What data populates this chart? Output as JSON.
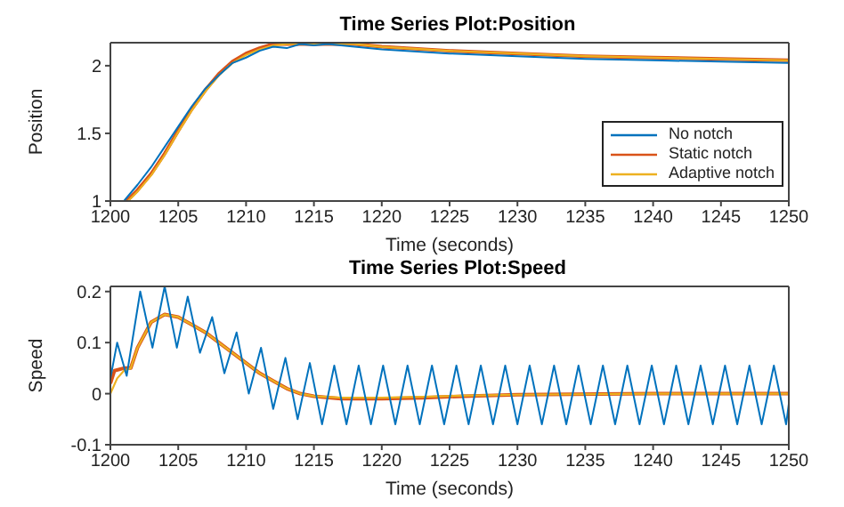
{
  "chart_data": [
    {
      "type": "line",
      "title": "Time Series Plot:Position",
      "xlabel": "Time (seconds)",
      "ylabel": "Position",
      "xlim": [
        1200,
        1250
      ],
      "xticks": [
        1200,
        1205,
        1210,
        1215,
        1220,
        1225,
        1230,
        1235,
        1240,
        1245,
        1250
      ],
      "ylim": [
        1,
        2.17
      ],
      "yticks": [
        1,
        1.5,
        2
      ],
      "grid": false,
      "legend": "bottom right",
      "series": [
        {
          "name": "No notch",
          "color": "#0072bd",
          "x": [
            1201,
            1202,
            1203,
            1204,
            1205,
            1206,
            1207,
            1208,
            1209,
            1210,
            1211,
            1212,
            1213,
            1214,
            1215,
            1216,
            1217,
            1218,
            1220,
            1225,
            1230,
            1235,
            1240,
            1245,
            1250
          ],
          "values": [
            1.0,
            1.12,
            1.25,
            1.4,
            1.55,
            1.7,
            1.83,
            1.93,
            2.02,
            2.06,
            2.11,
            2.14,
            2.13,
            2.16,
            2.15,
            2.16,
            2.15,
            2.14,
            2.12,
            2.09,
            2.07,
            2.05,
            2.04,
            2.03,
            2.02
          ]
        },
        {
          "name": "Static notch",
          "color": "#d95319",
          "x": [
            1201.2,
            1202,
            1203,
            1204,
            1205,
            1206,
            1207,
            1208,
            1209,
            1210,
            1211,
            1212,
            1213,
            1215,
            1217,
            1218,
            1220,
            1225,
            1230,
            1235,
            1240,
            1245,
            1250
          ],
          "values": [
            1.0,
            1.08,
            1.2,
            1.35,
            1.52,
            1.68,
            1.82,
            1.94,
            2.03,
            2.09,
            2.13,
            2.16,
            2.16,
            2.16,
            2.16,
            2.16,
            2.14,
            2.11,
            2.09,
            2.07,
            2.06,
            2.05,
            2.04
          ]
        },
        {
          "name": "Adaptive notch",
          "color": "#edb120",
          "x": [
            1201.3,
            1202,
            1203,
            1204,
            1205,
            1206,
            1207,
            1208,
            1209,
            1210,
            1211,
            1212,
            1213,
            1215,
            1217,
            1218,
            1220,
            1225,
            1230,
            1235,
            1240,
            1245,
            1250
          ],
          "values": [
            1.0,
            1.07,
            1.19,
            1.34,
            1.51,
            1.67,
            1.81,
            1.93,
            2.02,
            2.08,
            2.12,
            2.15,
            2.16,
            2.16,
            2.16,
            2.16,
            2.14,
            2.11,
            2.09,
            2.07,
            2.06,
            2.05,
            2.04
          ]
        }
      ]
    },
    {
      "type": "line",
      "title": "Time Series Plot:Speed",
      "xlabel": "Time (seconds)",
      "ylabel": "Speed",
      "xlim": [
        1200,
        1250
      ],
      "xticks": [
        1200,
        1205,
        1210,
        1215,
        1220,
        1225,
        1230,
        1235,
        1240,
        1245,
        1250
      ],
      "ylim": [
        -0.1,
        0.21
      ],
      "yticks": [
        -0.1,
        0,
        0.1,
        0.2
      ],
      "grid": false,
      "series": [
        {
          "color": "#0072bd",
          "x": [
            1200,
            1200.5,
            1201.2,
            1202.2,
            1203.1,
            1204,
            1204.9,
            1205.7,
            1206.6,
            1207.5,
            1208.4,
            1209.3,
            1210.2,
            1211.1,
            1212,
            1212.9,
            1213.8,
            1214.7,
            1215.6,
            1216.5,
            1217.4,
            1218.3,
            1219.2,
            1220.1,
            1221,
            1221.9,
            1222.8,
            1223.7,
            1224.6,
            1225.5,
            1226.4,
            1227.3,
            1228.2,
            1229.1,
            1230,
            1230.9,
            1231.8,
            1232.7,
            1233.6,
            1234.5,
            1235.4,
            1236.3,
            1237.2,
            1238.1,
            1239,
            1239.9,
            1240.8,
            1241.7,
            1242.6,
            1243.5,
            1244.4,
            1245.3,
            1246.2,
            1247.1,
            1248,
            1248.9,
            1249.8,
            1250
          ],
          "values": [
            0.03,
            0.1,
            0.035,
            0.2,
            0.09,
            0.21,
            0.09,
            0.19,
            0.08,
            0.15,
            0.04,
            0.12,
            0.0,
            0.09,
            -0.03,
            0.07,
            -0.05,
            0.06,
            -0.06,
            0.055,
            -0.06,
            0.055,
            -0.06,
            0.055,
            -0.06,
            0.055,
            -0.06,
            0.055,
            -0.06,
            0.055,
            -0.06,
            0.055,
            -0.06,
            0.055,
            -0.06,
            0.055,
            -0.06,
            0.055,
            -0.06,
            0.055,
            -0.06,
            0.055,
            -0.06,
            0.055,
            -0.06,
            0.055,
            -0.06,
            0.055,
            -0.06,
            0.055,
            -0.06,
            0.055,
            -0.06,
            0.055,
            -0.06,
            0.055,
            -0.06,
            -0.02
          ]
        },
        {
          "color": "#d95319",
          "x": [
            1200,
            1200.3,
            1201,
            1201.5,
            1202,
            1203,
            1204,
            1205,
            1206,
            1207,
            1208,
            1209,
            1210,
            1211,
            1212,
            1213,
            1214,
            1215,
            1217,
            1220,
            1223,
            1226,
            1230,
            1240,
            1250
          ],
          "values": [
            0.02,
            0.045,
            0.05,
            0.05,
            0.09,
            0.14,
            0.155,
            0.15,
            0.135,
            0.12,
            0.1,
            0.08,
            0.06,
            0.04,
            0.025,
            0.01,
            0.0,
            -0.005,
            -0.01,
            -0.01,
            -0.008,
            -0.005,
            -0.002,
            0,
            0
          ]
        },
        {
          "color": "#edb120",
          "x": [
            1200,
            1200.5,
            1201,
            1201.5,
            1202,
            1203,
            1204,
            1205,
            1206,
            1207,
            1208,
            1209,
            1210,
            1211,
            1212,
            1213,
            1214,
            1215,
            1217,
            1220,
            1223,
            1226,
            1230,
            1240,
            1250
          ],
          "values": [
            0.0,
            0.03,
            0.045,
            0.05,
            0.09,
            0.14,
            0.155,
            0.15,
            0.135,
            0.12,
            0.1,
            0.08,
            0.06,
            0.04,
            0.025,
            0.01,
            0.0,
            -0.005,
            -0.008,
            -0.008,
            -0.006,
            -0.004,
            -0.002,
            0,
            0
          ]
        }
      ]
    }
  ]
}
